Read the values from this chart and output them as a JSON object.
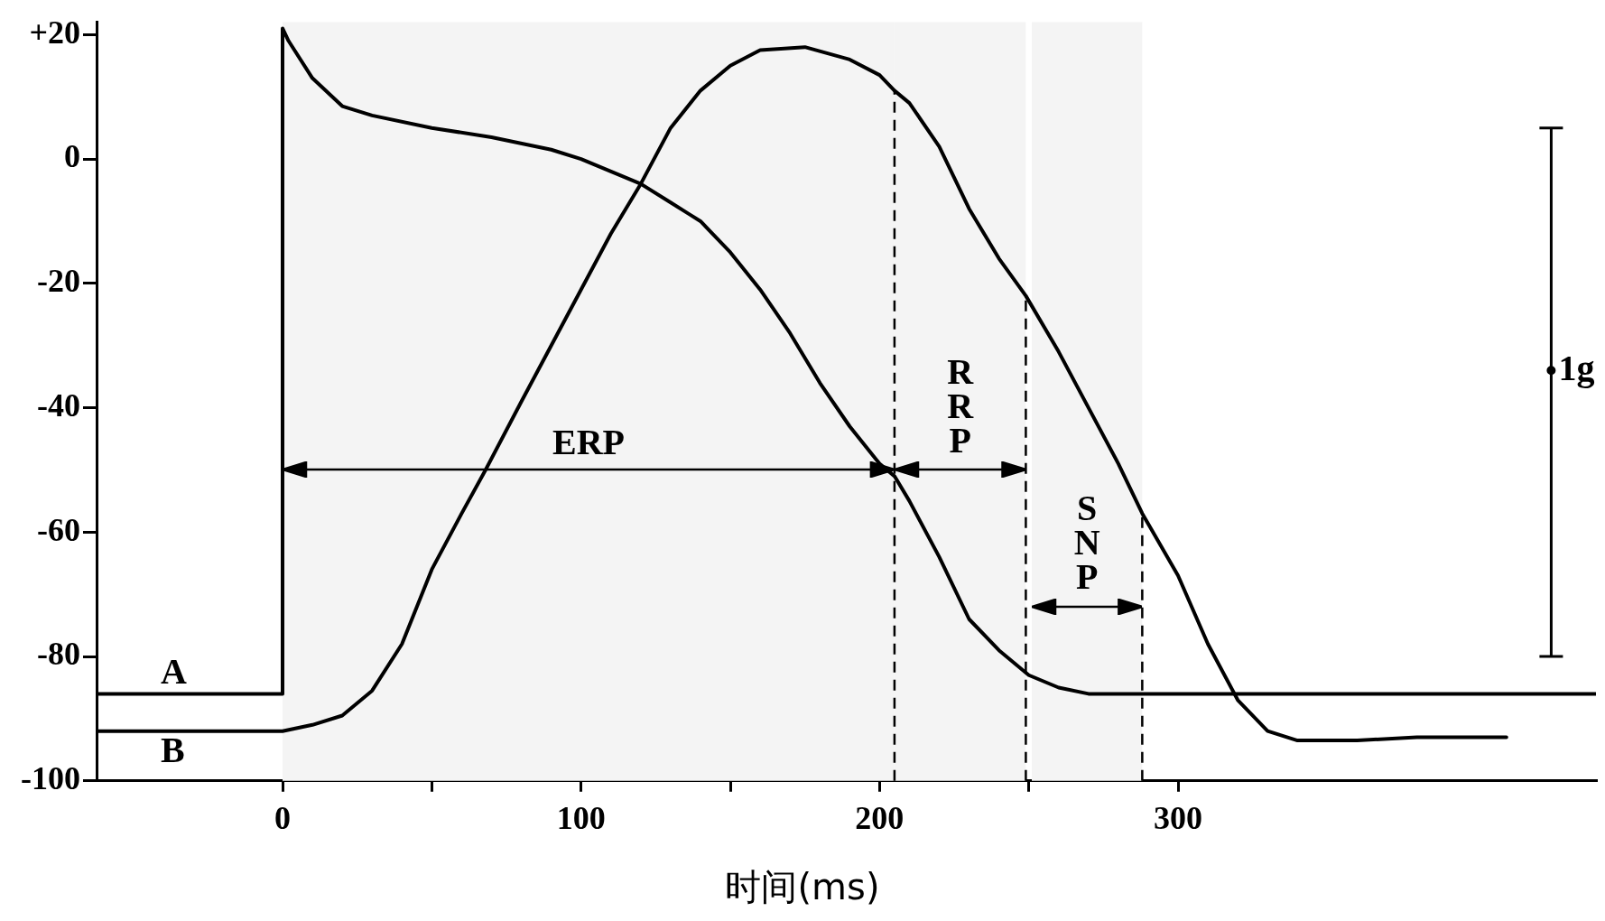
{
  "chart_data": {
    "type": "line",
    "xlabel": "时间(ms)",
    "series": [
      {
        "name": "A",
        "color": "#000000",
        "x": [
          -62,
          0,
          0,
          2,
          10,
          20,
          30,
          50,
          70,
          90,
          100,
          110,
          120,
          130,
          140,
          150,
          160,
          170,
          180,
          190,
          200,
          205,
          210,
          220,
          230,
          240,
          250,
          260,
          270,
          290,
          440
        ],
        "values": [
          -86,
          -86,
          21,
          19,
          13,
          8.5,
          7,
          5,
          3.5,
          1.5,
          0,
          -2,
          -4,
          -7,
          -10,
          -15,
          -21,
          -28,
          -36,
          -43,
          -49,
          -51,
          -55,
          -64,
          -74,
          -79,
          -83,
          -85,
          -86,
          -86,
          -86
        ]
      },
      {
        "name": "B",
        "color": "#000000",
        "x": [
          -62,
          0,
          10,
          20,
          30,
          40,
          50,
          60,
          68,
          80,
          90,
          100,
          110,
          120,
          130,
          140,
          150,
          160,
          175,
          190,
          200,
          205,
          210,
          220,
          230,
          240,
          249,
          260,
          270,
          280,
          288,
          300,
          310,
          320,
          330,
          340,
          360,
          380,
          410
        ],
        "values": [
          -92,
          -92,
          -91,
          -89.5,
          -85.5,
          -78,
          -66,
          -57,
          -50,
          -39,
          -30,
          -21,
          -12,
          -4,
          5,
          11,
          15,
          17.5,
          18,
          16,
          13.5,
          11,
          9,
          2,
          -8,
          -16,
          -22,
          -31,
          -40,
          -49,
          -57,
          -67,
          -78,
          -87,
          -92,
          -93.5,
          -93.5,
          -93,
          -93
        ]
      },
      {
        "name": "1g",
        "type": "scatter",
        "color": "#000000",
        "x": [
          425
        ],
        "values": [
          -34
        ],
        "errors": [
          [
            -80,
            5
          ]
        ],
        "marker": "circle"
      }
    ],
    "xlim": [
      -62,
      440
    ],
    "ylim": [
      -100,
      22
    ],
    "xticks": [
      0,
      {
        "value": 50,
        "label": null
      },
      100,
      {
        "value": 150,
        "label": null
      },
      200,
      {
        "value": 250,
        "label": null
      },
      300
    ],
    "yticks": [
      -100,
      -80,
      -60,
      -40,
      -20,
      0,
      {
        "value": 20,
        "label": "+20"
      }
    ],
    "grid": false,
    "marker": "none",
    "line_style": "solid",
    "ref_lines": [
      {
        "axis": "x",
        "value": 205,
        "line_style": "dashed"
      },
      {
        "axis": "x",
        "value": 249,
        "line_style": "dashed"
      },
      {
        "axis": "x",
        "value": 288,
        "line_style": "dashed"
      }
    ],
    "bands": [
      {
        "axis": "x",
        "from": 0,
        "to": 205,
        "label": "ERP",
        "color": "#f4f4f4"
      },
      {
        "axis": "x",
        "from": 205,
        "to": 249,
        "label": "RRP",
        "color": "#f4f4f4"
      },
      {
        "axis": "x",
        "from": 251,
        "to": 288,
        "label": "SNP",
        "color": "#f4f4f4"
      }
    ]
  }
}
